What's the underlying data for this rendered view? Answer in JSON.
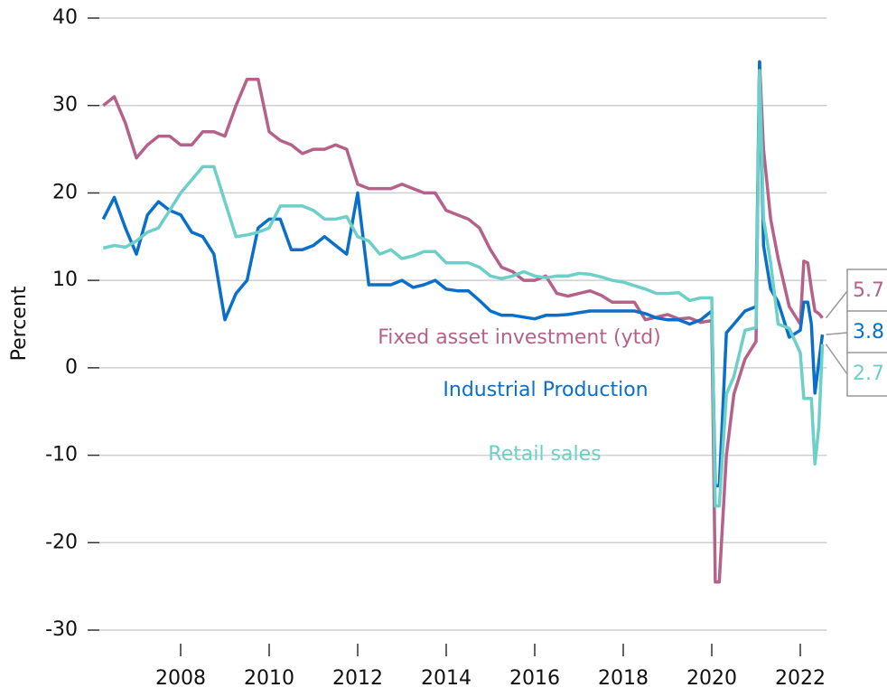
{
  "chart_data": {
    "type": "line",
    "y_label": "Percent",
    "xlim": [
      2006,
      2022.6
    ],
    "xticks": [
      2008,
      2010,
      2012,
      2014,
      2016,
      2018,
      2020,
      2022
    ],
    "ylim": [
      -30,
      40
    ],
    "yticks": [
      -30,
      -20,
      -10,
      0,
      10,
      20,
      30,
      40
    ],
    "grid": true,
    "x": [
      2006.25,
      2006.5,
      2006.75,
      2007,
      2007.25,
      2007.5,
      2007.75,
      2008,
      2008.25,
      2008.5,
      2008.75,
      2009,
      2009.25,
      2009.5,
      2009.75,
      2010,
      2010.25,
      2010.5,
      2010.75,
      2011,
      2011.25,
      2011.5,
      2011.75,
      2012,
      2012.25,
      2012.5,
      2012.75,
      2013,
      2013.25,
      2013.5,
      2013.75,
      2014,
      2014.25,
      2014.5,
      2014.75,
      2015,
      2015.25,
      2015.5,
      2015.75,
      2016,
      2016.25,
      2016.5,
      2016.75,
      2017,
      2017.25,
      2017.5,
      2017.75,
      2018,
      2018.25,
      2018.5,
      2018.75,
      2019,
      2019.25,
      2019.5,
      2019.75,
      2020,
      2020.08,
      2020.17,
      2020.33,
      2020.5,
      2020.75,
      2021,
      2021.08,
      2021.17,
      2021.33,
      2021.5,
      2021.75,
      2022,
      2022.08,
      2022.17,
      2022.25,
      2022.33,
      2022.42,
      2022.5
    ],
    "series": [
      {
        "name": "Fixed asset investment (ytd)",
        "color": "#b5628a",
        "values": [
          30,
          31,
          28,
          24,
          25.5,
          26.5,
          26.5,
          25.5,
          25.5,
          27,
          27,
          26.5,
          30,
          33,
          33,
          27,
          26,
          25.5,
          24.5,
          25,
          25,
          25.5,
          25,
          21,
          20.5,
          20.5,
          20.5,
          21,
          20.5,
          20,
          20,
          18,
          17.5,
          17,
          16,
          13.5,
          11.5,
          11,
          10,
          10,
          10.5,
          8.5,
          8.2,
          8.5,
          8.8,
          8.3,
          7.5,
          7.5,
          7.5,
          5.5,
          5.8,
          6.1,
          5.6,
          5.7,
          5.2,
          5.4,
          -24.5,
          -24.5,
          -10,
          -3,
          1,
          3,
          35,
          25,
          17,
          12.5,
          7,
          5,
          12.2,
          12,
          9,
          6.5,
          6.2,
          5.7
        ]
      },
      {
        "name": "Industrial Production",
        "color": "#0a6fc9",
        "values": [
          17,
          19.5,
          16,
          13,
          17.5,
          19,
          18,
          17.5,
          15.5,
          15,
          13,
          5.5,
          8.5,
          10,
          16,
          17,
          17,
          13.5,
          13.5,
          14,
          15,
          14,
          13,
          20,
          9.5,
          9.5,
          9.5,
          10,
          9.2,
          9.5,
          10,
          9,
          8.8,
          8.8,
          7.7,
          6.5,
          6,
          6,
          5.8,
          5.6,
          6,
          6,
          6.1,
          6.3,
          6.5,
          6.5,
          6.5,
          6.5,
          6.5,
          6.2,
          5.7,
          5.5,
          5.5,
          5,
          5.5,
          6.5,
          -13.5,
          -13.5,
          4,
          5,
          6.5,
          7,
          35,
          14,
          9,
          7.5,
          3.5,
          4.3,
          7.5,
          7.5,
          5,
          -2.9,
          0.7,
          3.8
        ]
      },
      {
        "name": "Retail sales",
        "color": "#6ccfc8",
        "values": [
          13.7,
          14,
          13.8,
          14.5,
          15.5,
          16,
          18,
          20,
          21.5,
          23,
          23,
          19,
          15,
          15.2,
          15.5,
          16,
          18.5,
          18.5,
          18.5,
          18,
          17,
          17,
          17.3,
          15,
          14.5,
          13,
          13.5,
          12.5,
          12.8,
          13.3,
          13.3,
          12,
          12,
          12,
          11.5,
          10.5,
          10.2,
          10.5,
          11,
          10.5,
          10.3,
          10.5,
          10.5,
          10.8,
          10.7,
          10.4,
          10,
          9.8,
          9.4,
          9,
          8.5,
          8.5,
          8.6,
          7.7,
          8,
          8,
          -15.8,
          -15.8,
          -3,
          -1,
          4.3,
          4.6,
          34,
          17,
          12,
          5,
          4.5,
          1.7,
          -3.5,
          -3.5,
          -3.5,
          -11,
          -6.7,
          2.7
        ]
      }
    ]
  }
}
